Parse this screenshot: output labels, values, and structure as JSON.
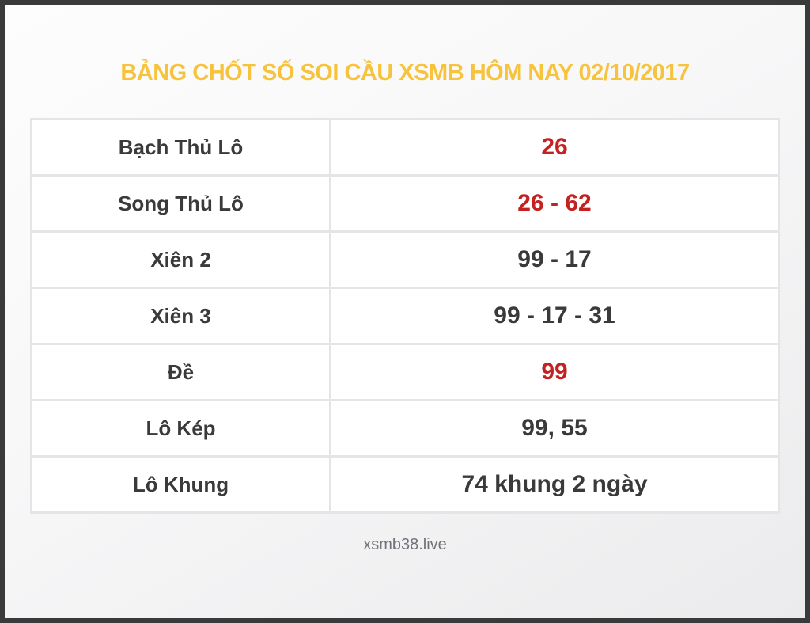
{
  "title": "BẢNG CHỐT SỐ SOI CẦU XSMB HÔM NAY 02/10/2017",
  "table": {
    "rows": [
      {
        "label": "Bạch Thủ Lô",
        "value": "26",
        "value_color": "red"
      },
      {
        "label": "Song Thủ Lô",
        "value": "26 - 62",
        "value_color": "red"
      },
      {
        "label": "Xiên 2",
        "value": "99 - 17",
        "value_color": "dark"
      },
      {
        "label": "Xiên 3",
        "value": "99 - 17 - 31",
        "value_color": "dark"
      },
      {
        "label": "Đề",
        "value": "99",
        "value_color": "red"
      },
      {
        "label": "Lô Kép",
        "value": "99, 55",
        "value_color": "dark"
      },
      {
        "label": "Lô Khung",
        "value": "74 khung 2 ngày",
        "value_color": "dark"
      }
    ]
  },
  "footer": {
    "site": "xsmb38.live"
  },
  "colors": {
    "title": "#f7c33d",
    "value_red": "#c32220",
    "text_dark": "#3a3a3a",
    "footer_text": "#6f7378",
    "border": "#e5e5e7",
    "frame": "#3a3a3a"
  }
}
